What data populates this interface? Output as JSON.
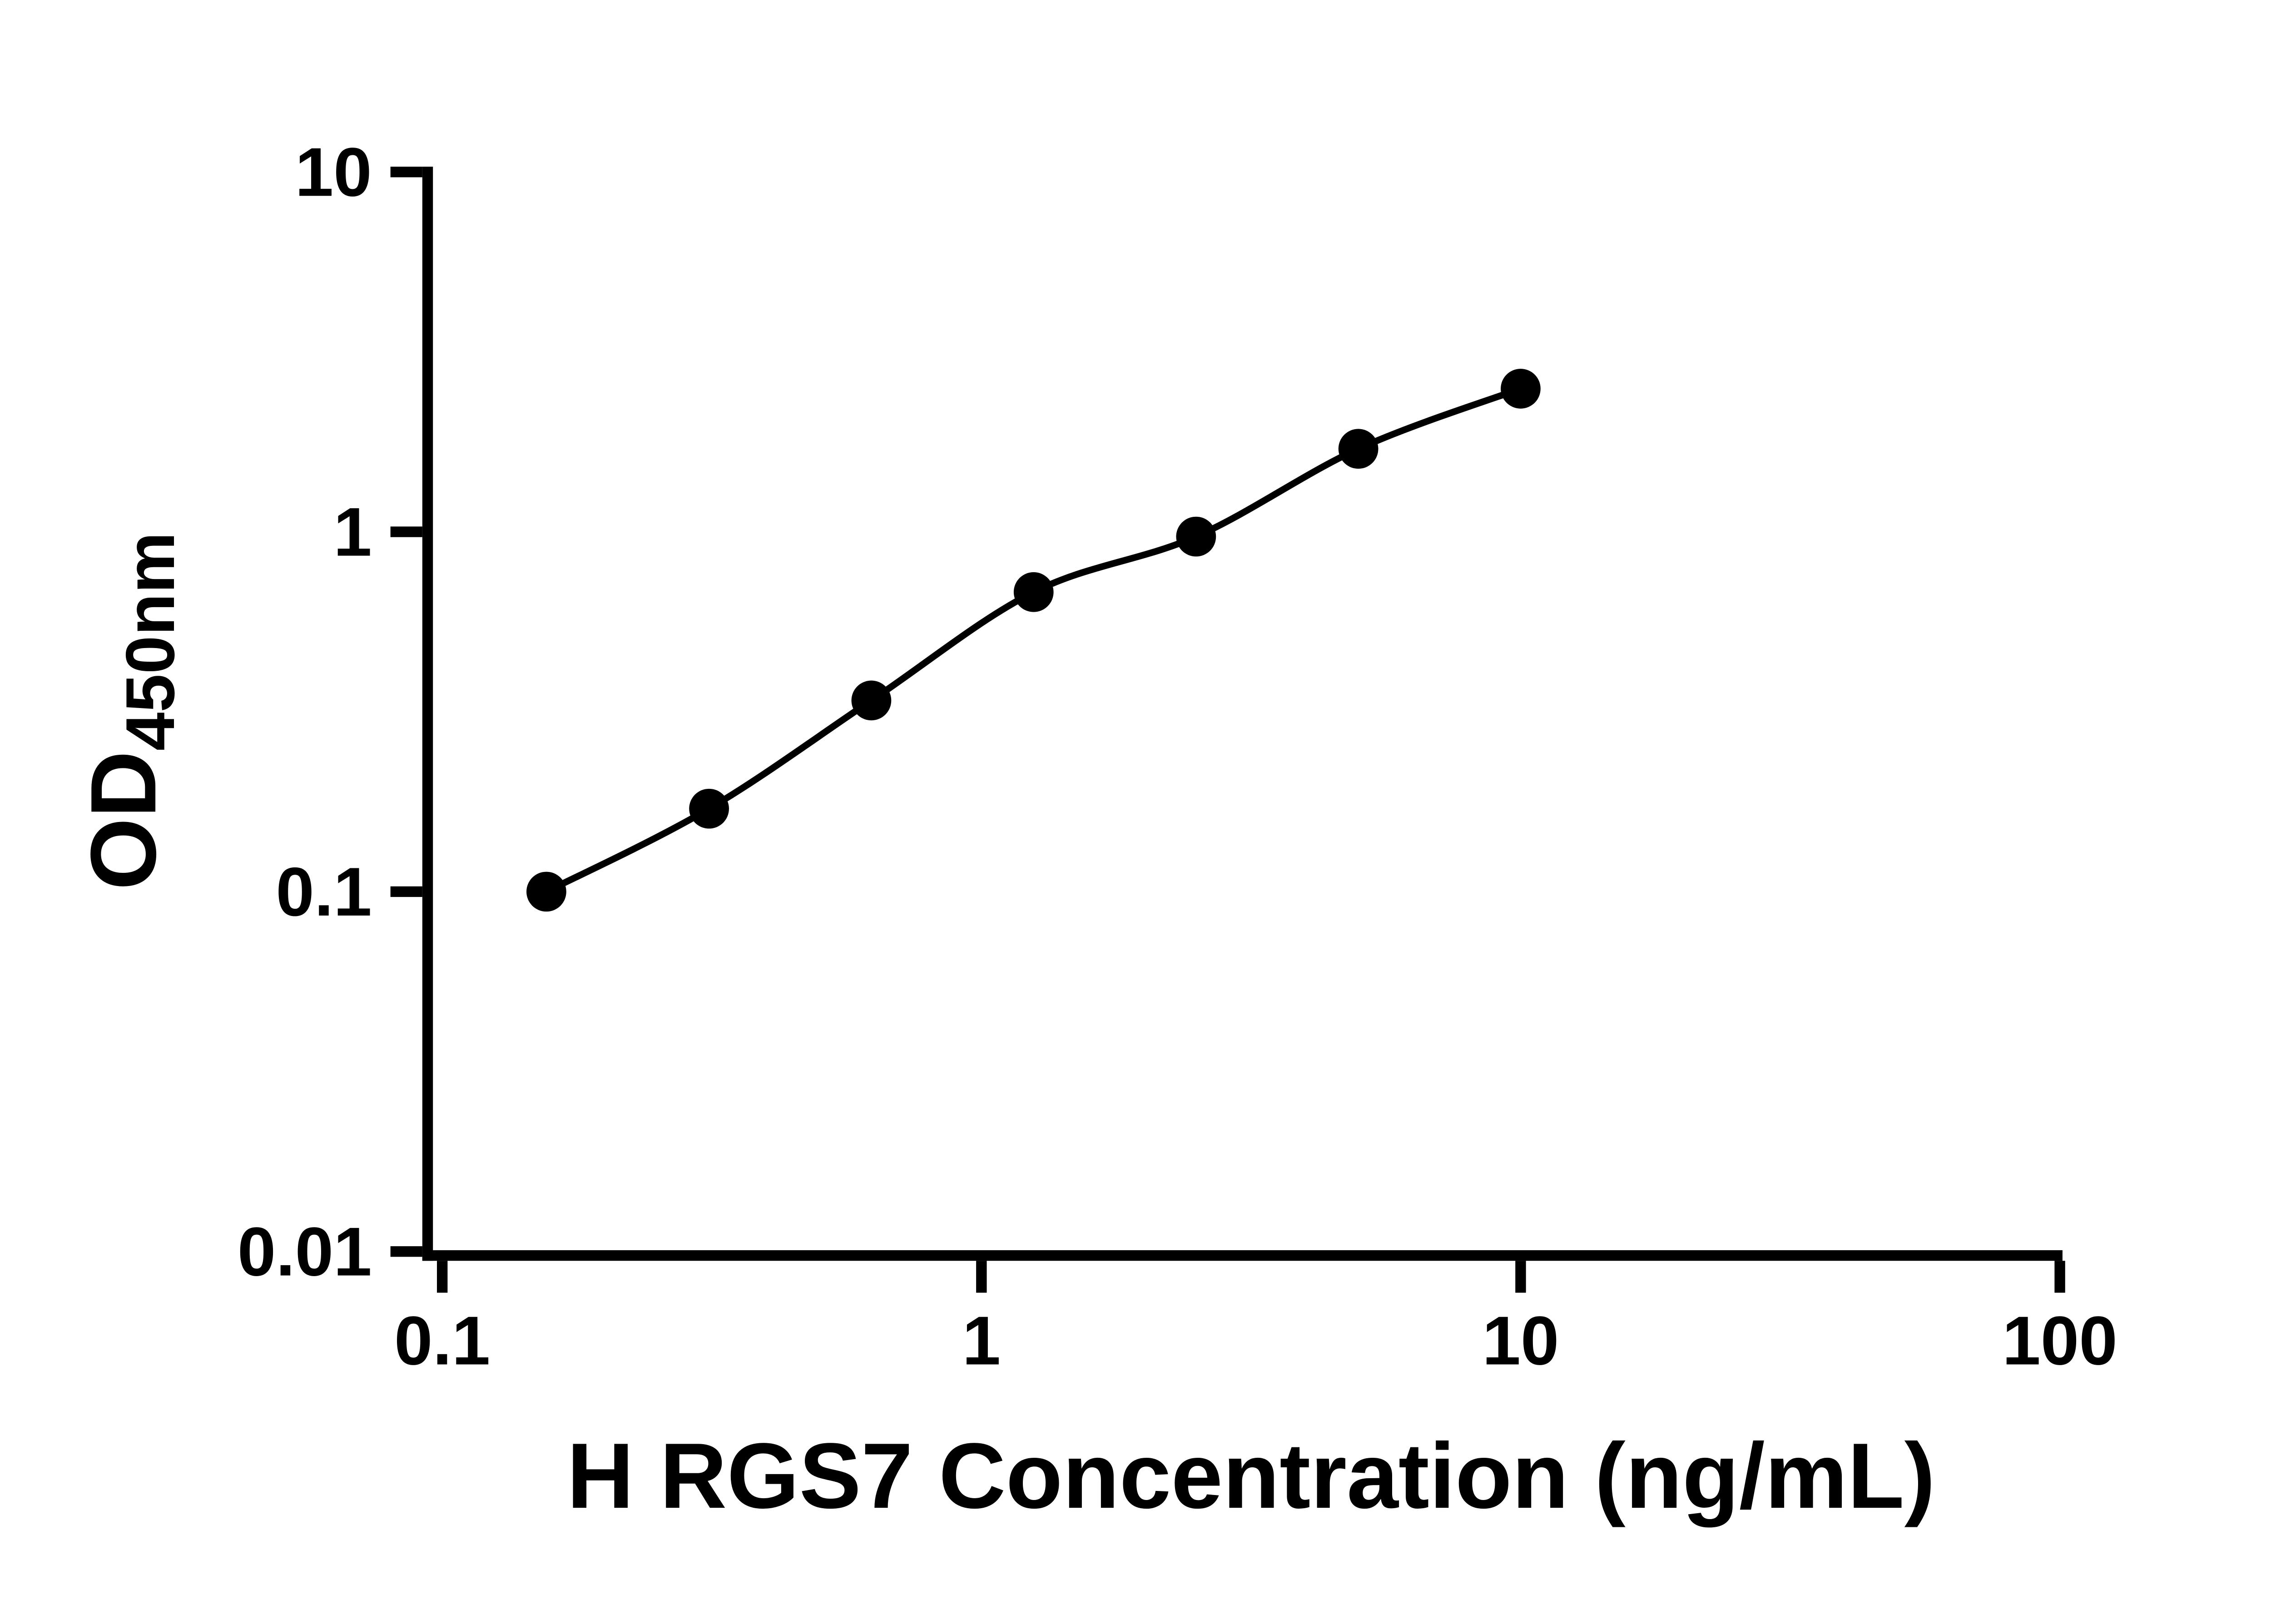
{
  "figure": {
    "kind": "ELISA standard curve plot",
    "background_color": "#ffffff"
  },
  "chart_data": {
    "type": "scatter",
    "fit_curve": true,
    "title": "",
    "xlabel": "H RGS7 Concentration (ng/mL)",
    "ylabel_main": "OD",
    "ylabel_sub": "450nm",
    "x_scale": "log",
    "y_scale": "log",
    "xlim": [
      0.1,
      100
    ],
    "ylim": [
      0.01,
      10
    ],
    "x_ticks": [
      0.1,
      1,
      10,
      100
    ],
    "x_tick_labels": [
      "0.1",
      "1",
      "10",
      "100"
    ],
    "y_ticks": [
      0.01,
      0.1,
      1,
      10
    ],
    "y_tick_labels": [
      "0.01",
      "0.1",
      "1",
      "10"
    ],
    "points": [
      {
        "x": 0.156,
        "y": 0.1
      },
      {
        "x": 0.3125,
        "y": 0.17
      },
      {
        "x": 0.625,
        "y": 0.34
      },
      {
        "x": 1.25,
        "y": 0.68
      },
      {
        "x": 2.5,
        "y": 0.97
      },
      {
        "x": 5,
        "y": 1.7
      },
      {
        "x": 10,
        "y": 2.5
      }
    ],
    "marker_color": "#000000",
    "line_color": "#000000",
    "axis_color": "#000000",
    "text_color": "#000000",
    "grid": false,
    "legend": false
  }
}
